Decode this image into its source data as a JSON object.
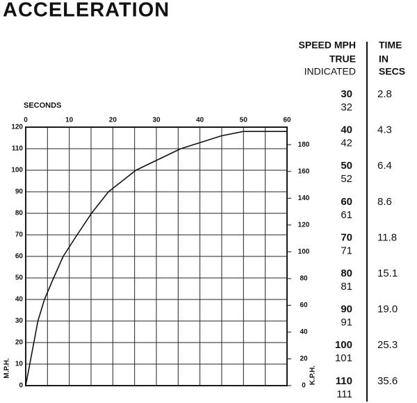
{
  "title": "ACCELERATION",
  "chart_data": {
    "type": "line",
    "xlabel": "SECONDS",
    "ylabel": "M.P.H.",
    "y2label": "K.P.H.",
    "x": [
      0,
      2.8,
      4.3,
      6.4,
      8.6,
      11.8,
      15.1,
      19.0,
      25.3,
      35.6,
      45,
      50,
      60
    ],
    "series": [
      {
        "color": "#111111",
        "values": [
          0,
          30,
          40,
          50,
          60,
          70,
          80,
          90,
          100,
          110,
          116,
          118,
          118
        ]
      }
    ],
    "xlim": [
      0,
      60
    ],
    "xticks": [
      0,
      10,
      20,
      30,
      40,
      50,
      60
    ],
    "ylim": [
      0,
      120
    ],
    "yticks": [
      0,
      10,
      20,
      30,
      40,
      50,
      60,
      70,
      80,
      90,
      100,
      110,
      120
    ],
    "y2lim": [
      0,
      193.1
    ],
    "y2ticks": [
      0,
      20,
      40,
      60,
      80,
      100,
      120,
      140,
      160,
      180
    ],
    "grid": true
  },
  "table": {
    "header": [
      [
        "SPEED MPH",
        "TRUE",
        "INDICATED"
      ],
      [
        "TIME",
        "IN",
        "SECS"
      ]
    ],
    "rows": [
      {
        "true": "30",
        "indicated": "32",
        "time": "2.8"
      },
      {
        "true": "40",
        "indicated": "42",
        "time": "4.3"
      },
      {
        "true": "50",
        "indicated": "52",
        "time": "6.4"
      },
      {
        "true": "60",
        "indicated": "61",
        "time": "8.6"
      },
      {
        "true": "70",
        "indicated": "71",
        "time": "11.8"
      },
      {
        "true": "80",
        "indicated": "81",
        "time": "15.1"
      },
      {
        "true": "90",
        "indicated": "91",
        "time": "19.0"
      },
      {
        "true": "100",
        "indicated": "101",
        "time": "25.3"
      },
      {
        "true": "110",
        "indicated": "111",
        "time": "35.6"
      }
    ]
  }
}
